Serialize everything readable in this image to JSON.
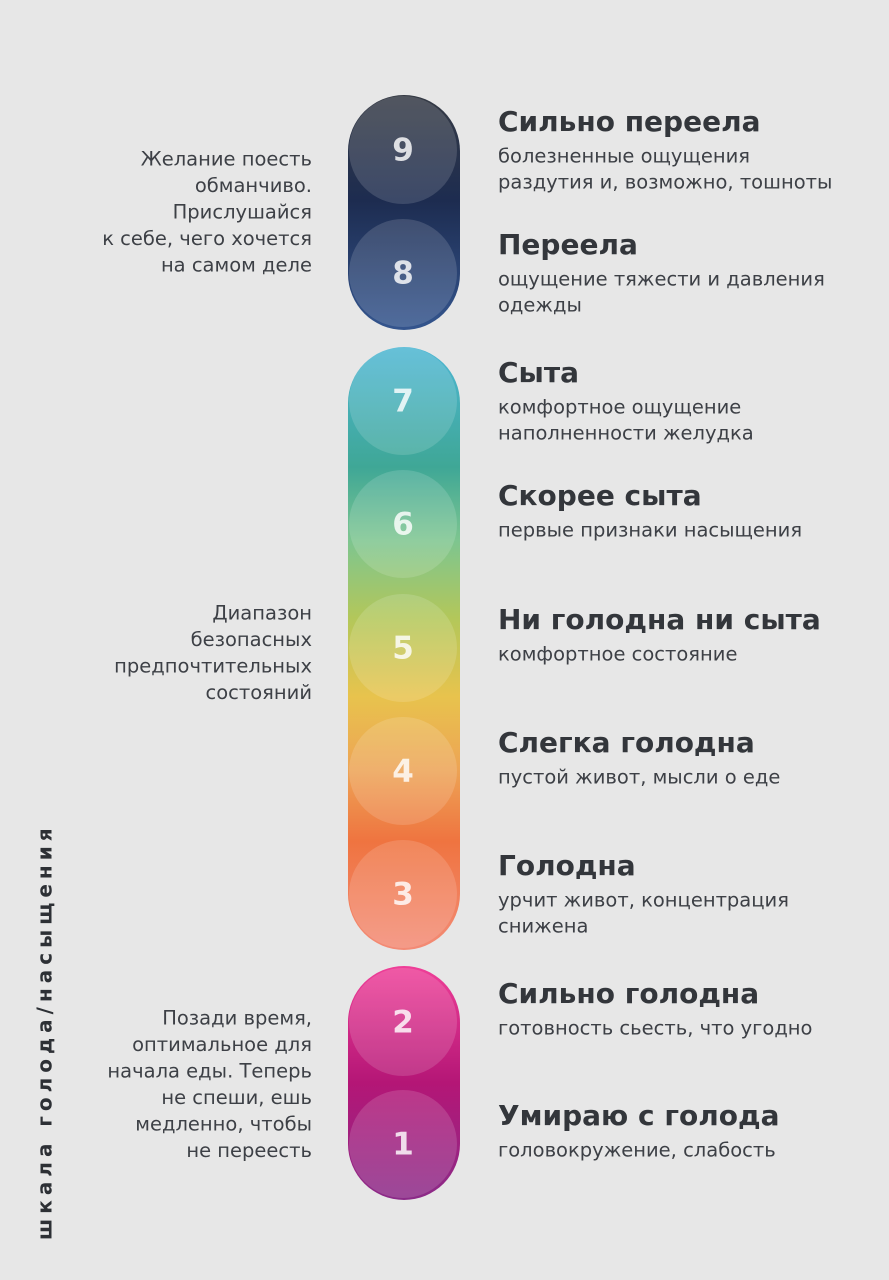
{
  "side_title": "шкала голода/насыщения",
  "notes": [
    [
      "Желание поесть",
      "обманчиво.",
      "Прислушайся",
      "к себе, чего хочется",
      "на самом деле"
    ],
    [
      "Диапазон",
      "безопасных",
      "предпочтительных",
      "состояний"
    ],
    [
      "Позади время,",
      "оптимальное для",
      "начала еды. Теперь",
      "не спеши, ешь",
      "медленно, чтобы",
      "не переесть"
    ]
  ],
  "levels": [
    {
      "number": 9,
      "title": "Сильно переела",
      "description": [
        "болезненные ощущения",
        "раздутия и, возможно, тошноты"
      ]
    },
    {
      "number": 8,
      "title": "Переела",
      "description": [
        "ощущение тяжести и давления",
        "одежды"
      ]
    },
    {
      "number": 7,
      "title": "Сыта",
      "description": [
        "комфортное ощущение",
        "наполненности желудка"
      ]
    },
    {
      "number": 6,
      "title": "Скорее сыта",
      "description": [
        "первые признаки насыщения"
      ]
    },
    {
      "number": 5,
      "title": "Ни голодна ни сыта",
      "description": [
        "комфортное состояние"
      ]
    },
    {
      "number": 4,
      "title": "Слегка голодна",
      "description": [
        "пустой живот, мысли о еде"
      ]
    },
    {
      "number": 3,
      "title": "Голодна",
      "description": [
        "урчит живот, концентрация",
        "снижена"
      ]
    },
    {
      "number": 2,
      "title": "Сильно голодна",
      "description": [
        "готовность сьесть, что угодно"
      ]
    },
    {
      "number": 1,
      "title": "Умираю с голода",
      "description": [
        "головокружение, слабость"
      ]
    }
  ]
}
